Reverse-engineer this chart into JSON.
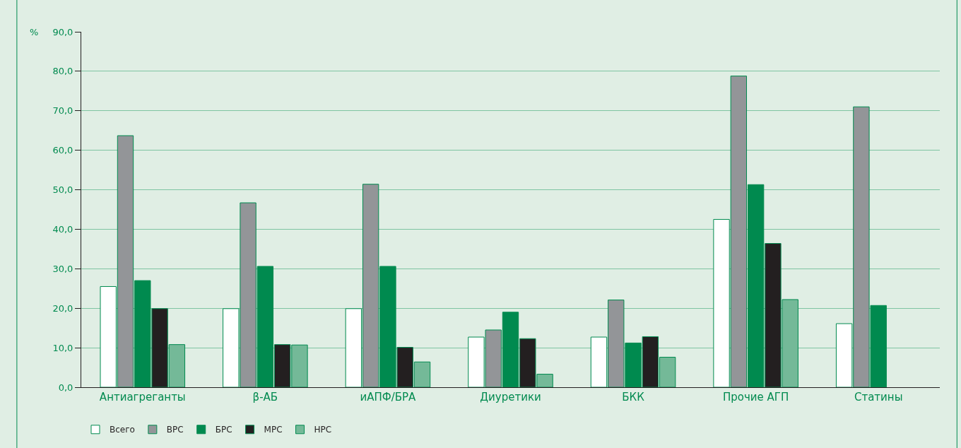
{
  "chart_data": {
    "type": "bar",
    "ylabel": "%",
    "categories": [
      "Антиагреганты",
      "β-АБ",
      "иАПФ/БРА",
      "Диуретики",
      "БКК",
      "Прочие АГП",
      "Статины"
    ],
    "series": [
      {
        "name": "Всего",
        "color": "#ffffff",
        "values": [
          25.5,
          19.9,
          19.9,
          12.7,
          12.7,
          42.5,
          16.1
        ]
      },
      {
        "name": "ВРС",
        "color": "#939598",
        "values": [
          63.7,
          46.7,
          51.4,
          14.5,
          22.1,
          78.8,
          71.0
        ]
      },
      {
        "name": "БРС",
        "color": "#008a4f",
        "values": [
          27.0,
          30.6,
          30.6,
          19.0,
          11.2,
          51.3,
          20.7
        ]
      },
      {
        "name": "МРС",
        "color": "#231f20",
        "values": [
          19.9,
          10.8,
          10.1,
          12.3,
          12.8,
          36.4,
          null
        ]
      },
      {
        "name": "НРС",
        "color": "#74b998",
        "values": [
          10.8,
          10.7,
          6.4,
          3.3,
          7.6,
          22.2,
          null
        ]
      }
    ],
    "ylim": [
      0,
      90
    ],
    "yticks": [
      {
        "value": 0,
        "label": "0,0"
      },
      {
        "value": 10,
        "label": "10,0"
      },
      {
        "value": 20,
        "label": "20,0"
      },
      {
        "value": 30,
        "label": "30,0"
      },
      {
        "value": 40,
        "label": "40,0"
      },
      {
        "value": 50,
        "label": "50,0"
      },
      {
        "value": 60,
        "label": "60,0"
      },
      {
        "value": 70,
        "label": "70,0"
      },
      {
        "value": 80,
        "label": "80,0"
      },
      {
        "value": 90,
        "label": "90,0"
      }
    ],
    "grid": "y",
    "legend": "bottom left"
  }
}
